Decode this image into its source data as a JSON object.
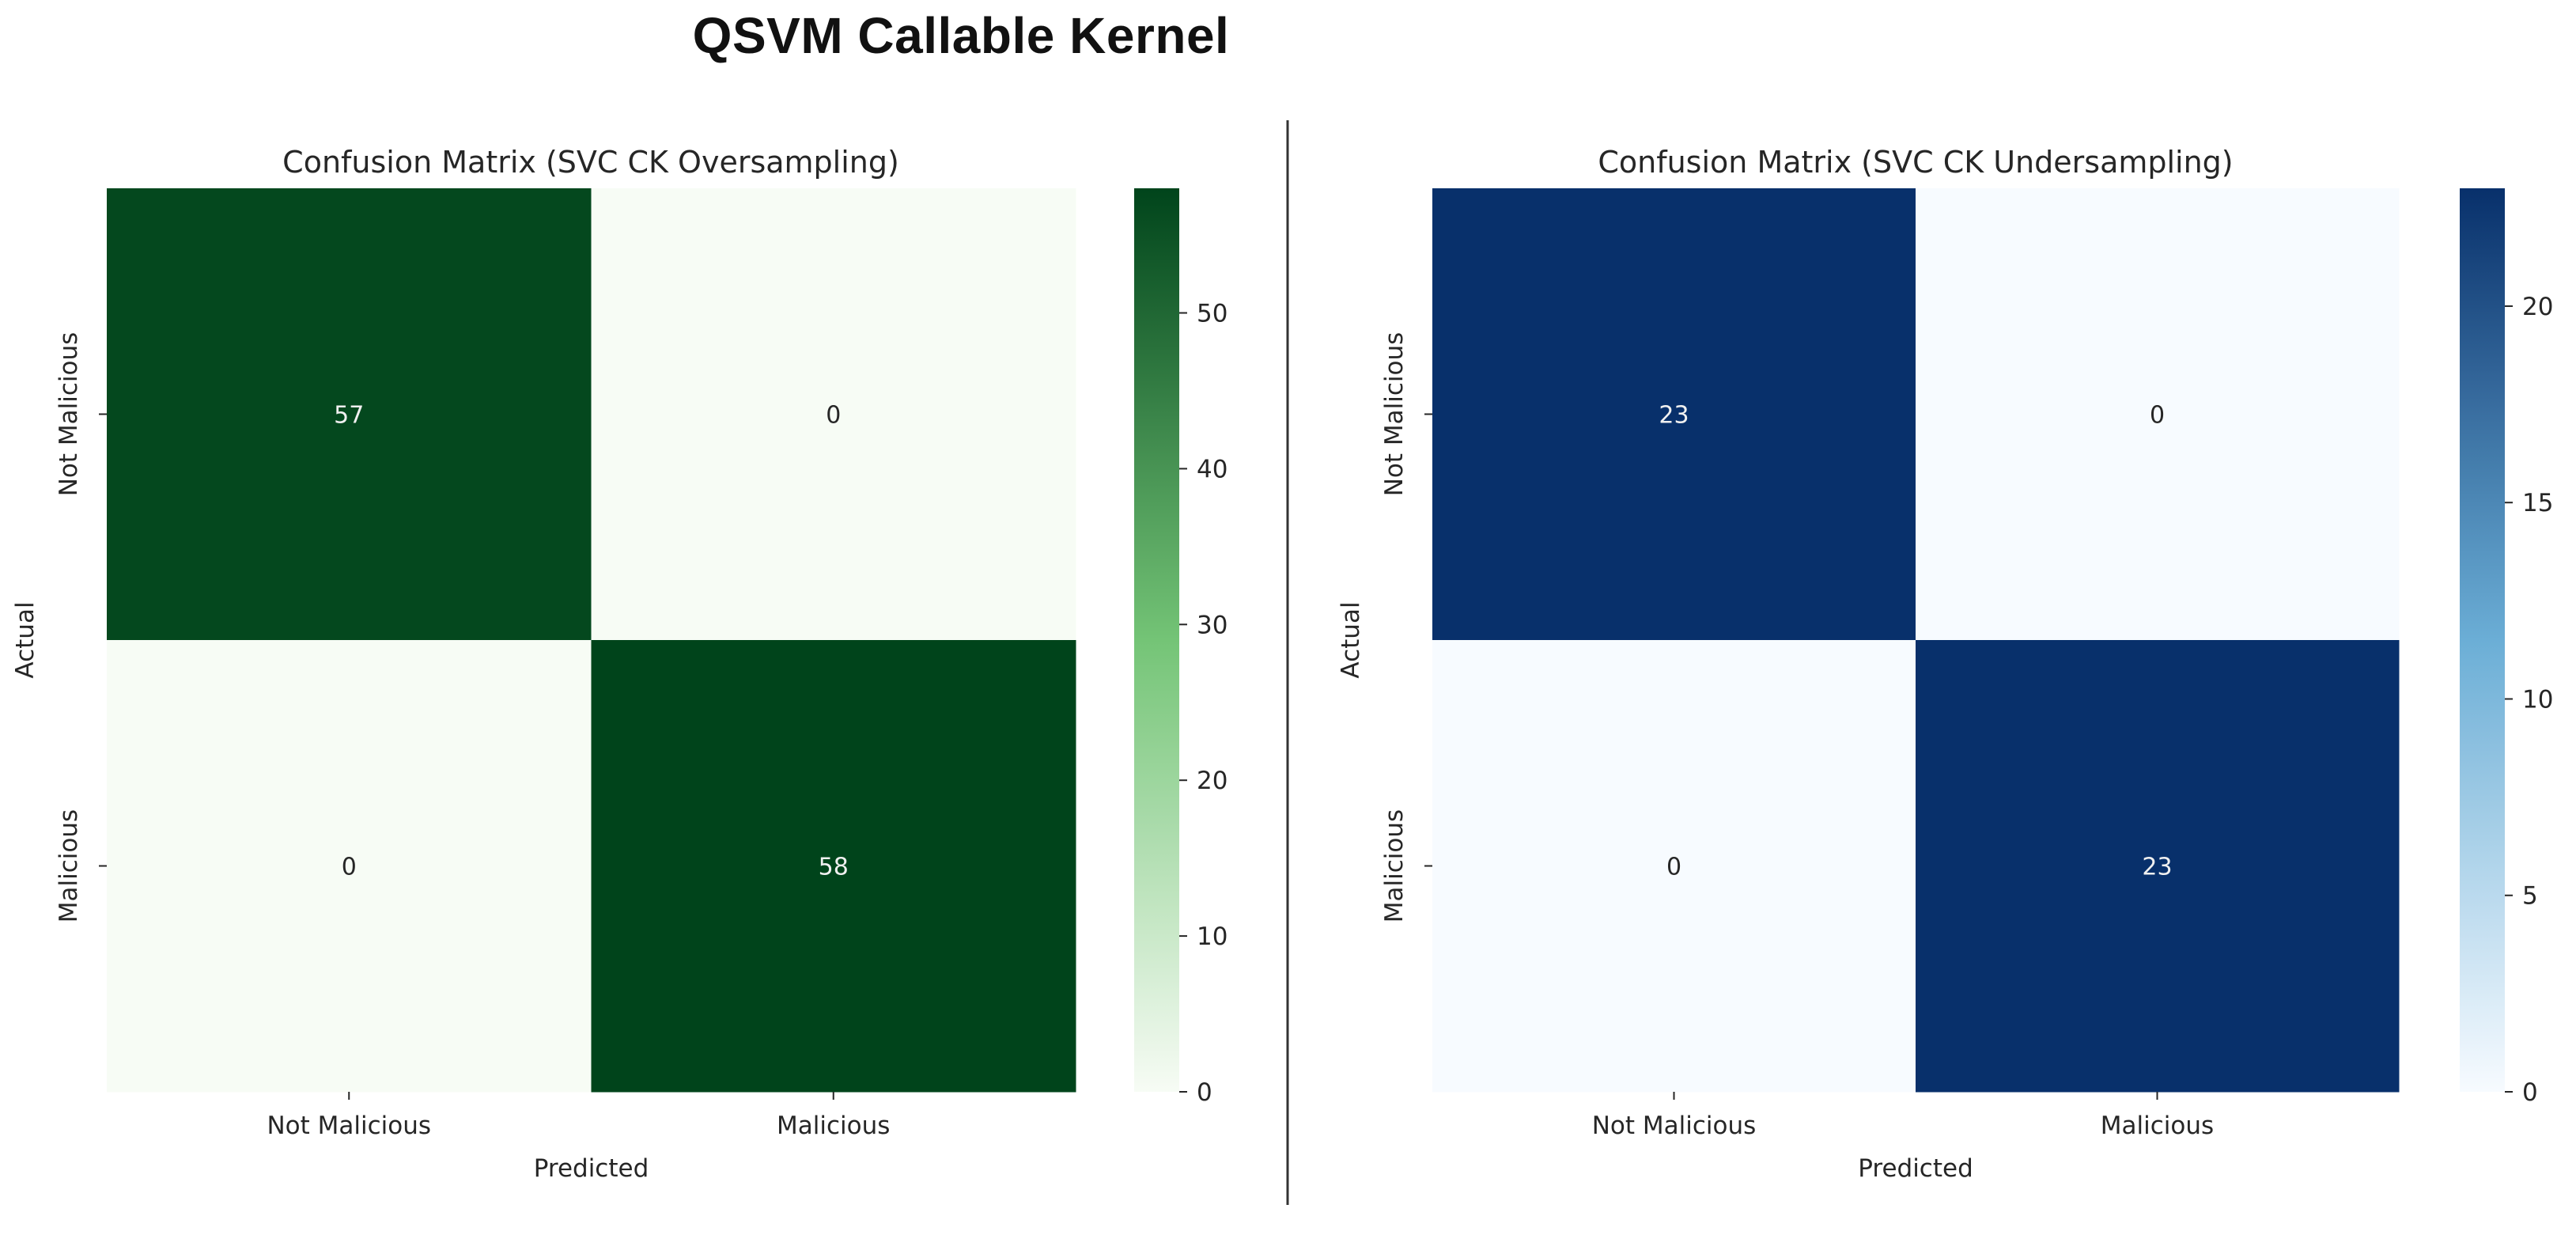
{
  "page": {
    "title": "QSVM Callable Kernel"
  },
  "chart_data": [
    {
      "type": "heatmap",
      "title": "Confusion Matrix (SVC CK Oversampling)",
      "xlabel": "Predicted",
      "ylabel": "Actual",
      "x_categories": [
        "Not Malicious",
        "Malicious"
      ],
      "y_categories": [
        "Not Malicious",
        "Malicious"
      ],
      "values": [
        [
          57,
          0
        ],
        [
          0,
          58
        ]
      ],
      "colormap": "Greens",
      "colors": {
        "low": "#f7fcf5",
        "mid": "#74c476",
        "high": "#00441b",
        "light_text": "#f0f0f0",
        "dark_text": "#262626"
      },
      "colorbar": {
        "range": [
          0,
          58
        ],
        "ticks": [
          0,
          10,
          20,
          30,
          40,
          50
        ]
      }
    },
    {
      "type": "heatmap",
      "title": "Confusion Matrix (SVC CK Undersampling)",
      "xlabel": "Predicted",
      "ylabel": "Actual",
      "x_categories": [
        "Not Malicious",
        "Malicious"
      ],
      "y_categories": [
        "Not Malicious",
        "Malicious"
      ],
      "values": [
        [
          23,
          0
        ],
        [
          0,
          23
        ]
      ],
      "colormap": "Blues",
      "colors": {
        "low": "#f7fbff",
        "mid": "#6baed6",
        "high": "#08306b",
        "light_text": "#f0f0f0",
        "dark_text": "#262626"
      },
      "colorbar": {
        "range": [
          0,
          23
        ],
        "ticks": [
          0,
          5,
          10,
          15,
          20
        ]
      }
    }
  ]
}
